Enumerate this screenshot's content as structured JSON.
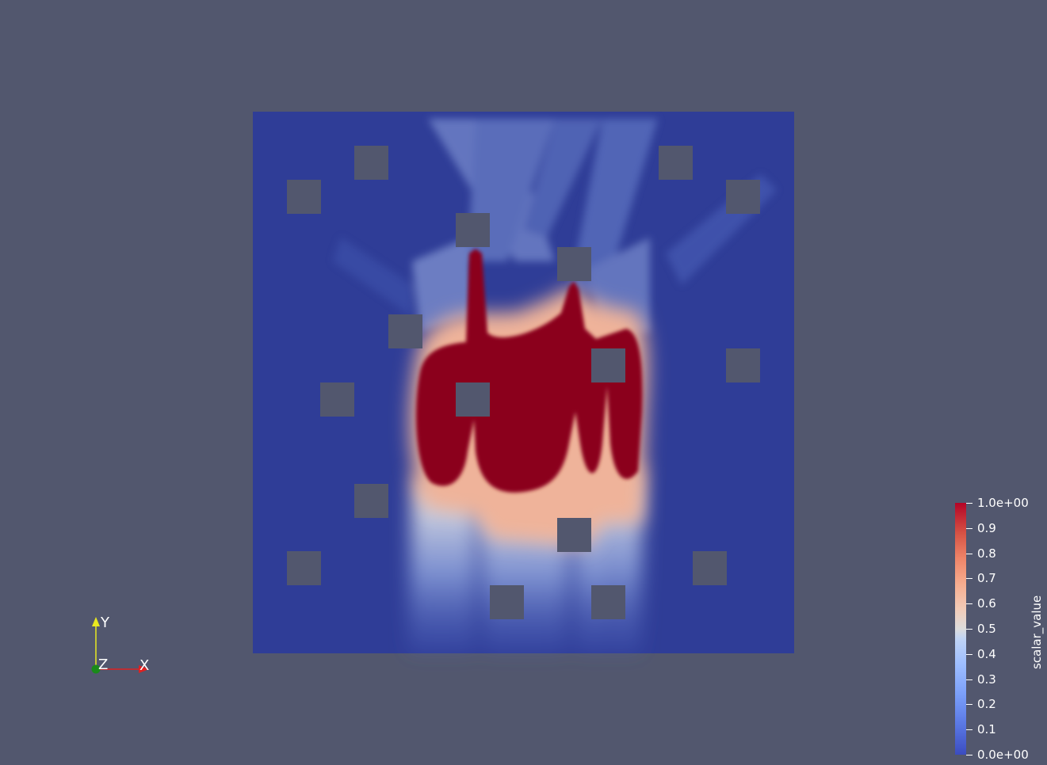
{
  "orientation_axes": {
    "x_label": "X",
    "y_label": "Y",
    "z_label": "Z",
    "x_color": "#e02020",
    "y_color": "#e8e820",
    "z_color": "#1a8a1a"
  },
  "colorbar": {
    "title": "scalar_value",
    "colormap": "Cool to Warm",
    "range": [
      0.0,
      1.0
    ],
    "labels": [
      "1.0e+00",
      "0.9",
      "0.8",
      "0.7",
      "0.6",
      "0.5",
      "0.4",
      "0.3",
      "0.2",
      "0.1",
      "0.0e+00"
    ]
  },
  "colors": {
    "background": "#52576e",
    "low": "#2e3d96",
    "high": "#8b001f"
  }
}
